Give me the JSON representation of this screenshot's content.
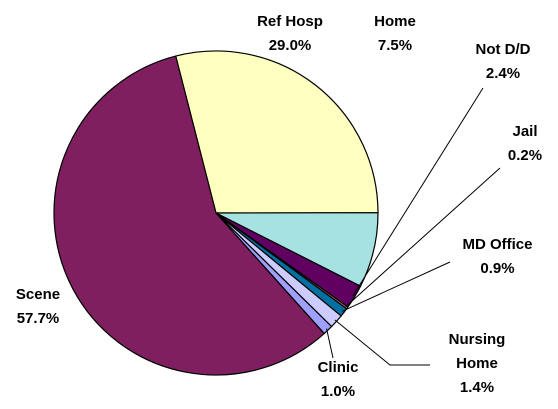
{
  "chart_data": {
    "type": "pie",
    "categories": [
      "Ref Hosp",
      "Home",
      "Not D/D",
      "Jail",
      "MD Office",
      "Nursing Home",
      "Clinic",
      "Scene"
    ],
    "values": [
      29.0,
      7.5,
      2.4,
      0.2,
      0.9,
      1.4,
      1.0,
      57.7
    ],
    "value_labels": [
      "29.0%",
      "7.5%",
      "2.4%",
      "0.2%",
      "0.9%",
      "1.4%",
      "1.0%",
      "57.7%"
    ],
    "colors": [
      "#ffffc0",
      "#a6e2e2",
      "#600060",
      "#ff8080",
      "#0070a0",
      "#ccccff",
      "#a0a0ff",
      "#7f1f5f"
    ]
  }
}
